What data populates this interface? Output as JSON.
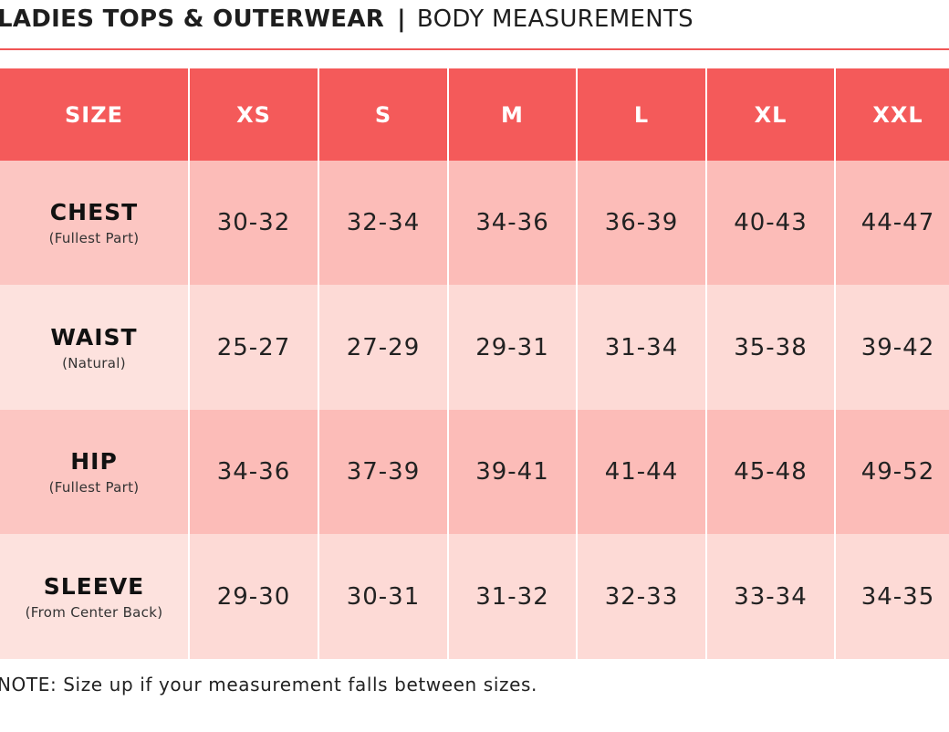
{
  "title": {
    "main": "LADIES TOPS & OUTERWEAR",
    "separator": "|",
    "subtitle": "BODY MEASUREMENTS"
  },
  "table": {
    "headers": [
      "SIZE",
      "XS",
      "S",
      "M",
      "L",
      "XL",
      "XXL"
    ],
    "rows": [
      {
        "label": "CHEST",
        "sub": "(Fullest Part)",
        "values": [
          "30-32",
          "32-34",
          "34-36",
          "36-39",
          "40-43",
          "44-47"
        ]
      },
      {
        "label": "WAIST",
        "sub": "(Natural)",
        "values": [
          "25-27",
          "27-29",
          "29-31",
          "31-34",
          "35-38",
          "39-42"
        ]
      },
      {
        "label": "HIP",
        "sub": "(Fullest Part)",
        "values": [
          "34-36",
          "37-39",
          "39-41",
          "41-44",
          "45-48",
          "49-52"
        ]
      },
      {
        "label": "SLEEVE",
        "sub": "(From Center Back)",
        "values": [
          "29-30",
          "30-31",
          "31-32",
          "32-33",
          "33-34",
          "34-35"
        ]
      }
    ]
  },
  "note": "NOTE: Size up if your measurement falls between sizes.",
  "colors": {
    "header": "#f45a5a",
    "row_dark": "#fcbcb8",
    "row_light": "#fddad6",
    "rule": "#f05555"
  }
}
